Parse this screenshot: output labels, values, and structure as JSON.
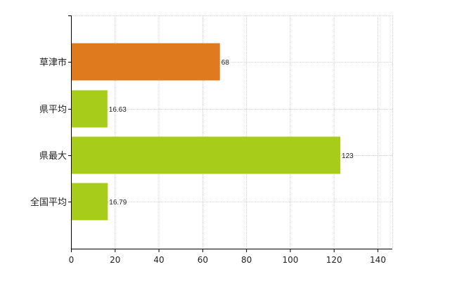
{
  "chart_data": {
    "type": "bar",
    "orientation": "horizontal",
    "categories": [
      "草津市",
      "県平均",
      "県最大",
      "全国平均"
    ],
    "values": [
      68,
      16.63,
      123,
      16.79
    ],
    "data_labels": [
      "68",
      "16.63",
      "123",
      "16.79"
    ],
    "bar_colors": [
      "#e07a1f",
      "#a8cc1a",
      "#a8cc1a",
      "#a8cc1a"
    ],
    "xlim": [
      0,
      140
    ],
    "xticks": [
      0,
      20,
      40,
      60,
      80,
      100,
      120,
      140
    ],
    "grid": true,
    "legend": "none"
  }
}
